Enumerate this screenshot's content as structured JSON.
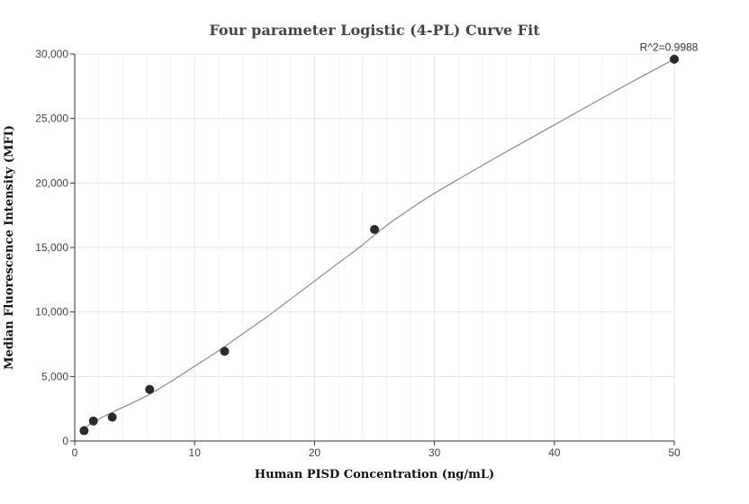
{
  "chart_data": {
    "type": "scatter",
    "title": "Four parameter Logistic (4-PL) Curve Fit",
    "xlabel": "Human PISD Concentration (ng/mL)",
    "ylabel": "Median Fluorescence Intensity (MFI)",
    "xlim": [
      0,
      50
    ],
    "ylim": [
      0,
      30000
    ],
    "x_ticks": [
      0,
      10,
      20,
      30,
      40,
      50
    ],
    "y_ticks": [
      0,
      5000,
      10000,
      15000,
      20000,
      25000,
      30000
    ],
    "x_tick_labels": [
      "0",
      "10",
      "20",
      "30",
      "40",
      "50"
    ],
    "y_tick_labels": [
      "0",
      "5,000",
      "10,000",
      "15,000",
      "20,000",
      "25,000",
      "30,000"
    ],
    "grid": true,
    "series": [
      {
        "x": [
          0.78,
          1.56,
          3.13,
          6.25,
          12.5,
          25,
          50
        ],
        "y": [
          800,
          1550,
          1850,
          4000,
          6950,
          16400,
          29600
        ]
      }
    ],
    "fit_curve": {
      "x": [
        0.78,
        2,
        4,
        6,
        8,
        10,
        12,
        14,
        16,
        18,
        20,
        22,
        24,
        26,
        28,
        30,
        35,
        40,
        45,
        50
      ],
      "y": [
        1000,
        1700,
        2600,
        3500,
        4600,
        5800,
        7000,
        8300,
        9600,
        11000,
        12400,
        13800,
        15200,
        16700,
        18000,
        19200,
        21900,
        24500,
        27100,
        29600
      ]
    },
    "annotation": "R^2=0.9988"
  }
}
